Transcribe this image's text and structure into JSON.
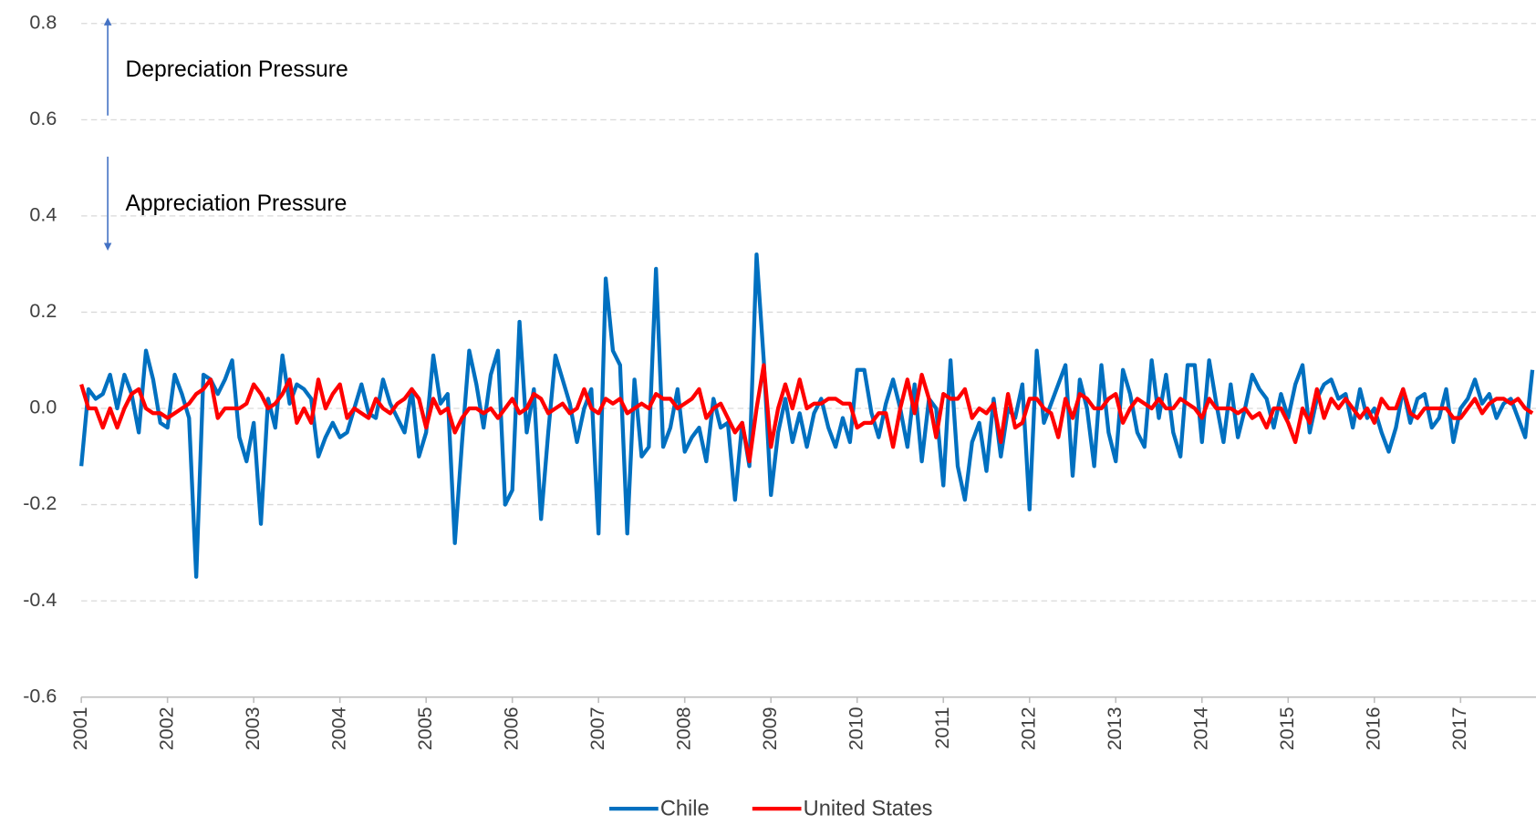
{
  "chart_data": {
    "type": "line",
    "annotations": [
      "Depreciation Pressure",
      "Appreciation Pressure"
    ],
    "categories": [
      "2001",
      null,
      null,
      null,
      null,
      null,
      null,
      null,
      null,
      null,
      null,
      null,
      "2002",
      null,
      null,
      null,
      null,
      null,
      null,
      null,
      null,
      null,
      null,
      null,
      "2003",
      null,
      null,
      null,
      null,
      null,
      null,
      null,
      null,
      null,
      null,
      null,
      "2004",
      null,
      null,
      null,
      null,
      null,
      null,
      null,
      null,
      null,
      null,
      null,
      "2005",
      null,
      null,
      null,
      null,
      null,
      null,
      null,
      null,
      null,
      null,
      null,
      "2006",
      null,
      null,
      null,
      null,
      null,
      null,
      null,
      null,
      null,
      null,
      null,
      "2007",
      null,
      null,
      null,
      null,
      null,
      null,
      null,
      null,
      null,
      null,
      null,
      "2008",
      null,
      null,
      null,
      null,
      null,
      null,
      null,
      null,
      null,
      null,
      null,
      "2009",
      null,
      null,
      null,
      null,
      null,
      null,
      null,
      null,
      null,
      null,
      null,
      "2010",
      null,
      null,
      null,
      null,
      null,
      null,
      null,
      null,
      null,
      null,
      null,
      "2011",
      null,
      null,
      null,
      null,
      null,
      null,
      null,
      null,
      null,
      null,
      null,
      "2012",
      null,
      null,
      null,
      null,
      null,
      null,
      null,
      null,
      null,
      null,
      null,
      "2013",
      null,
      null,
      null,
      null,
      null,
      null,
      null,
      null,
      null,
      null,
      null,
      "2014",
      null,
      null,
      null,
      null,
      null,
      null,
      null,
      null,
      null,
      null,
      null,
      "2015",
      null,
      null,
      null,
      null,
      null,
      null,
      null,
      null,
      null,
      null,
      null,
      "2016",
      null,
      null,
      null,
      null,
      null,
      null,
      null,
      null,
      null,
      null,
      null,
      "2017",
      null,
      null,
      null,
      null,
      null,
      null,
      null,
      null,
      null,
      null
    ],
    "series": [
      {
        "name": "Chile",
        "color": "#0070c0",
        "values": [
          -0.12,
          0.04,
          0.02,
          0.03,
          0.07,
          0.0,
          0.07,
          0.03,
          -0.05,
          0.12,
          0.06,
          -0.03,
          -0.04,
          0.07,
          0.03,
          -0.02,
          -0.35,
          0.07,
          0.06,
          0.03,
          0.06,
          0.1,
          -0.06,
          -0.11,
          -0.03,
          -0.24,
          0.02,
          -0.04,
          0.11,
          0.01,
          0.05,
          0.04,
          0.02,
          -0.1,
          -0.06,
          -0.03,
          -0.06,
          -0.05,
          0.0,
          0.05,
          -0.01,
          -0.02,
          0.06,
          0.01,
          -0.02,
          -0.05,
          0.04,
          -0.1,
          -0.05,
          0.11,
          0.01,
          0.03,
          -0.28,
          -0.07,
          0.12,
          0.05,
          -0.04,
          0.07,
          0.12,
          -0.2,
          -0.17,
          0.18,
          -0.05,
          0.04,
          -0.23,
          -0.05,
          0.11,
          0.06,
          0.01,
          -0.07,
          0.0,
          0.04,
          -0.26,
          0.27,
          0.12,
          0.09,
          -0.26,
          0.06,
          -0.1,
          -0.08,
          0.29,
          -0.08,
          -0.04,
          0.04,
          -0.09,
          -0.06,
          -0.04,
          -0.11,
          0.02,
          -0.04,
          -0.03,
          -0.19,
          -0.03,
          -0.12,
          0.32,
          0.1,
          -0.18,
          -0.05,
          0.02,
          -0.07,
          -0.01,
          -0.08,
          -0.01,
          0.02,
          -0.04,
          -0.08,
          -0.02,
          -0.07,
          0.08,
          0.08,
          -0.01,
          -0.06,
          0.01,
          0.06,
          0.0,
          -0.08,
          0.05,
          -0.11,
          0.02,
          0.0,
          -0.16,
          0.1,
          -0.12,
          -0.19,
          -0.07,
          -0.03,
          -0.13,
          0.02,
          -0.1,
          0.0,
          -0.02,
          0.05,
          -0.21,
          0.12,
          -0.03,
          0.01,
          0.05,
          0.09,
          -0.14,
          0.06,
          0.0,
          -0.12,
          0.09,
          -0.05,
          -0.11,
          0.08,
          0.03,
          -0.05,
          -0.08,
          0.1,
          -0.02,
          0.07,
          -0.05,
          -0.1,
          0.09,
          0.09,
          -0.07,
          0.1,
          0.01,
          -0.07,
          0.05,
          -0.06,
          0.0,
          0.07,
          0.04,
          0.02,
          -0.04,
          0.03,
          -0.02,
          0.05,
          0.09,
          -0.05,
          0.02,
          0.05,
          0.06,
          0.02,
          0.03,
          -0.04,
          0.04,
          -0.02,
          0.0,
          -0.05,
          -0.09,
          -0.04,
          0.04,
          -0.03,
          0.02,
          0.03,
          -0.04,
          -0.02,
          0.04,
          -0.07,
          0.0,
          0.02,
          0.06,
          0.01,
          0.03,
          -0.02,
          0.01,
          0.02,
          -0.02,
          -0.06,
          0.08
        ]
      },
      {
        "name": "United States",
        "color": "#ff0000",
        "values": [
          0.05,
          0.0,
          0.0,
          -0.04,
          0.0,
          -0.04,
          0.0,
          0.03,
          0.04,
          0.0,
          -0.01,
          -0.01,
          -0.02,
          -0.01,
          0.0,
          0.01,
          0.03,
          0.04,
          0.06,
          -0.02,
          0.0,
          0.0,
          0.0,
          0.01,
          0.05,
          0.03,
          0.0,
          0.01,
          0.03,
          0.06,
          -0.03,
          0.0,
          -0.03,
          0.06,
          0.0,
          0.03,
          0.05,
          -0.02,
          0.0,
          -0.01,
          -0.02,
          0.02,
          0.0,
          -0.01,
          0.01,
          0.02,
          0.04,
          0.02,
          -0.04,
          0.02,
          -0.01,
          0.0,
          -0.05,
          -0.02,
          0.0,
          0.0,
          -0.01,
          0.0,
          -0.02,
          0.0,
          0.02,
          -0.01,
          0.0,
          0.03,
          0.02,
          -0.01,
          0.0,
          0.01,
          -0.01,
          0.0,
          0.04,
          0.0,
          -0.01,
          0.02,
          0.01,
          0.02,
          -0.01,
          0.0,
          0.01,
          0.0,
          0.03,
          0.02,
          0.02,
          0.0,
          0.01,
          0.02,
          0.04,
          -0.02,
          0.0,
          0.01,
          -0.02,
          -0.05,
          -0.03,
          -0.11,
          0.0,
          0.09,
          -0.08,
          0.0,
          0.05,
          0.0,
          0.06,
          0.0,
          0.01,
          0.01,
          0.02,
          0.02,
          0.01,
          0.01,
          -0.04,
          -0.03,
          -0.03,
          -0.01,
          -0.01,
          -0.08,
          0.0,
          0.06,
          -0.01,
          0.07,
          0.02,
          -0.06,
          0.03,
          0.02,
          0.02,
          0.04,
          -0.02,
          0.0,
          -0.01,
          0.01,
          -0.07,
          0.03,
          -0.04,
          -0.03,
          0.02,
          0.02,
          0.0,
          -0.01,
          -0.06,
          0.02,
          -0.02,
          0.03,
          0.02,
          0.0,
          0.0,
          0.02,
          0.03,
          -0.03,
          0.0,
          0.02,
          0.01,
          0.0,
          0.02,
          0.0,
          0.0,
          0.02,
          0.01,
          0.0,
          -0.02,
          0.02,
          0.0,
          0.0,
          0.0,
          -0.01,
          0.0,
          -0.02,
          -0.01,
          -0.04,
          0.0,
          0.0,
          -0.03,
          -0.07,
          0.0,
          -0.03,
          0.04,
          -0.02,
          0.02,
          0.0,
          0.02,
          0.0,
          -0.02,
          0.0,
          -0.03,
          0.02,
          0.0,
          0.0,
          0.04,
          -0.01,
          -0.02,
          0.0,
          0.0,
          0.0,
          0.0,
          -0.02,
          -0.02,
          0.0,
          0.02,
          -0.01,
          0.01,
          0.02,
          0.02,
          0.01,
          0.02,
          0.0,
          -0.01
        ]
      }
    ],
    "ylim": [
      -0.6,
      0.8
    ],
    "yticks": [
      -0.6,
      -0.4,
      -0.2,
      {
        "value": 0,
        "label": "0.0"
      },
      0.2,
      0.4,
      0.6,
      0.8
    ],
    "grid": true,
    "legend": "bottom"
  }
}
